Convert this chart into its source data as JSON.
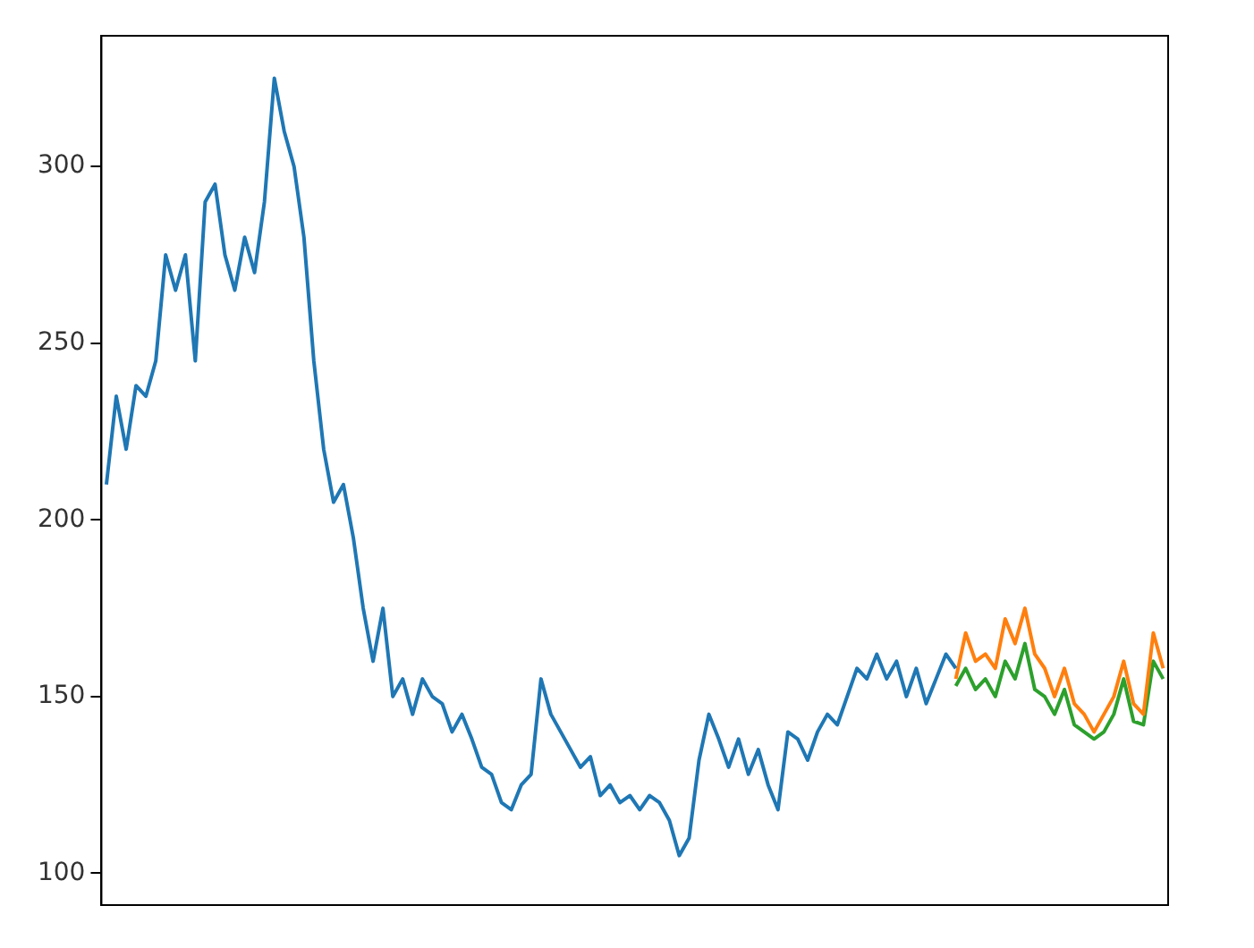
{
  "chart_data": {
    "type": "line",
    "categories": [
      null,
      null,
      null,
      null,
      null,
      null,
      null,
      null,
      null,
      null,
      null,
      null,
      null,
      null,
      null,
      null,
      null,
      null,
      null,
      null,
      null,
      null,
      null,
      null,
      null,
      null,
      null,
      null,
      null,
      null,
      null,
      null,
      null,
      null,
      null,
      null,
      null,
      null,
      null,
      null,
      null,
      null,
      null,
      null,
      null,
      null,
      null,
      null,
      null,
      null,
      null,
      null,
      null,
      null,
      null,
      null,
      null,
      null,
      null,
      null,
      null,
      null,
      null,
      null,
      null,
      null,
      null,
      null,
      null,
      null,
      null,
      null,
      null,
      null,
      null,
      null,
      null,
      null,
      null,
      null,
      null,
      null,
      null,
      null,
      null,
      null,
      null,
      null,
      null,
      null,
      null,
      null,
      null,
      null,
      null,
      null,
      null,
      null,
      null,
      null,
      null,
      null,
      null,
      null,
      null,
      null,
      null,
      null
    ],
    "series": [
      {
        "color": "#1f77b4",
        "values": [
          210,
          235,
          220,
          238,
          235,
          245,
          275,
          265,
          275,
          245,
          290,
          295,
          275,
          265,
          280,
          270,
          290,
          325,
          310,
          300,
          280,
          245,
          220,
          205,
          210,
          195,
          175,
          160,
          175,
          150,
          155,
          145,
          155,
          150,
          148,
          140,
          145,
          138,
          130,
          128,
          120,
          118,
          125,
          128,
          155,
          145,
          140,
          135,
          130,
          133,
          122,
          125,
          120,
          122,
          118,
          122,
          120,
          115,
          105,
          110,
          132,
          145,
          138,
          130,
          138,
          128,
          135,
          125,
          118,
          140,
          138,
          132,
          140,
          145,
          142,
          150,
          158,
          155,
          162,
          155,
          160,
          150,
          158,
          148,
          155,
          162,
          158,
          null,
          null,
          null,
          null,
          null,
          null,
          null,
          null,
          null,
          null,
          null,
          null,
          null,
          null,
          null,
          null,
          null,
          null,
          null,
          null,
          null
        ]
      },
      {
        "color": "#ff7f0e",
        "values": [
          null,
          null,
          null,
          null,
          null,
          null,
          null,
          null,
          null,
          null,
          null,
          null,
          null,
          null,
          null,
          null,
          null,
          null,
          null,
          null,
          null,
          null,
          null,
          null,
          null,
          null,
          null,
          null,
          null,
          null,
          null,
          null,
          null,
          null,
          null,
          null,
          null,
          null,
          null,
          null,
          null,
          null,
          null,
          null,
          null,
          null,
          null,
          null,
          null,
          null,
          null,
          null,
          null,
          null,
          null,
          null,
          null,
          null,
          null,
          null,
          null,
          null,
          null,
          null,
          null,
          null,
          null,
          null,
          null,
          null,
          null,
          null,
          null,
          null,
          null,
          null,
          null,
          null,
          null,
          null,
          null,
          null,
          null,
          null,
          null,
          null,
          155,
          168,
          160,
          162,
          158,
          172,
          165,
          175,
          162,
          158,
          150,
          158,
          148,
          145,
          140,
          145,
          150,
          160,
          148,
          145,
          168,
          158
        ]
      },
      {
        "color": "#2ca02c",
        "values": [
          null,
          null,
          null,
          null,
          null,
          null,
          null,
          null,
          null,
          null,
          null,
          null,
          null,
          null,
          null,
          null,
          null,
          null,
          null,
          null,
          null,
          null,
          null,
          null,
          null,
          null,
          null,
          null,
          null,
          null,
          null,
          null,
          null,
          null,
          null,
          null,
          null,
          null,
          null,
          null,
          null,
          null,
          null,
          null,
          null,
          null,
          null,
          null,
          null,
          null,
          null,
          null,
          null,
          null,
          null,
          null,
          null,
          null,
          null,
          null,
          null,
          null,
          null,
          null,
          null,
          null,
          null,
          null,
          null,
          null,
          null,
          null,
          null,
          null,
          null,
          null,
          null,
          null,
          null,
          null,
          null,
          null,
          null,
          null,
          null,
          null,
          153,
          158,
          152,
          155,
          150,
          160,
          155,
          165,
          152,
          150,
          145,
          152,
          142,
          140,
          138,
          140,
          145,
          155,
          143,
          142,
          160,
          155
        ]
      }
    ],
    "ylim": [
      91,
      337
    ],
    "yticks": [
      100,
      150,
      200,
      250,
      300
    ],
    "tick_labels": "y"
  }
}
